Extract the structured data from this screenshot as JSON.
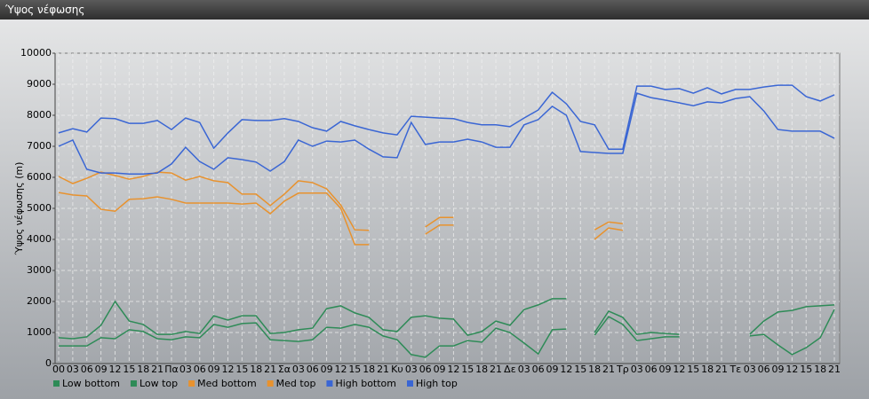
{
  "chart_data": {
    "type": "line",
    "title": "Ύψος νέφωσης",
    "ylabel": "Ύψος νέφωσης (m)",
    "categories": [
      "00",
      "03",
      "06",
      "09",
      "12",
      "15",
      "18",
      "21",
      "Πα",
      "03",
      "06",
      "09",
      "12",
      "15",
      "18",
      "21",
      "Σα",
      "03",
      "06",
      "09",
      "12",
      "15",
      "18",
      "21",
      "Κυ",
      "03",
      "06",
      "09",
      "12",
      "15",
      "18",
      "21",
      "Δε",
      "03",
      "06",
      "09",
      "12",
      "15",
      "18",
      "21",
      "Τρ",
      "03",
      "06",
      "09",
      "12",
      "15",
      "18",
      "21",
      "Τε",
      "03",
      "06",
      "09",
      "12",
      "15",
      "18",
      "21"
    ],
    "ylim": [
      0,
      10000
    ],
    "yticks": [
      0,
      1000,
      2000,
      3000,
      4000,
      5000,
      6000,
      7000,
      8000,
      9000,
      10000
    ],
    "grid": true,
    "legend": "bottom-left",
    "series": [
      {
        "name": "Low bottom",
        "color": "#2e8b57",
        "values": [
          570,
          570,
          570,
          830,
          800,
          1090,
          1030,
          800,
          770,
          860,
          830,
          1260,
          1170,
          1290,
          1310,
          770,
          740,
          710,
          770,
          1170,
          1140,
          1260,
          1170,
          890,
          770,
          290,
          200,
          570,
          570,
          740,
          690,
          1140,
          1000,
          660,
          310,
          1090,
          1110,
          null,
          910,
          1510,
          1260,
          740,
          800,
          860,
          860,
          null,
          null,
          null,
          null,
          890,
          940,
          600,
          290,
          510,
          830,
          1740
        ]
      },
      {
        "name": "Low top",
        "color": "#2e8b57",
        "values": [
          830,
          800,
          860,
          1230,
          2000,
          1370,
          1260,
          940,
          940,
          1030,
          970,
          1540,
          1400,
          1540,
          1540,
          970,
          1000,
          1090,
          1140,
          1770,
          1860,
          1630,
          1490,
          1090,
          1030,
          1490,
          1540,
          1460,
          1430,
          910,
          1030,
          1370,
          1230,
          1740,
          1890,
          2090,
          2090,
          null,
          1000,
          1690,
          1490,
          940,
          1000,
          970,
          940,
          null,
          null,
          null,
          null,
          940,
          1370,
          1660,
          1710,
          1830,
          1860,
          1890
        ]
      },
      {
        "name": "Med bottom",
        "color": "#e8922e",
        "values": [
          5510,
          5430,
          5400,
          4970,
          4910,
          5290,
          5310,
          5370,
          5290,
          5170,
          5170,
          5170,
          5170,
          5140,
          5170,
          4830,
          5230,
          5490,
          5490,
          5490,
          5000,
          3830,
          3830,
          null,
          null,
          null,
          4170,
          4460,
          4460,
          null,
          null,
          null,
          null,
          null,
          null,
          null,
          null,
          null,
          4000,
          4370,
          4290,
          null,
          null,
          null,
          null,
          null,
          null,
          null,
          null,
          null,
          null,
          null,
          null,
          null,
          null,
          null
        ]
      },
      {
        "name": "Med top",
        "color": "#e8922e",
        "values": [
          6030,
          5800,
          5970,
          6170,
          6060,
          5940,
          6030,
          6170,
          6140,
          5910,
          6030,
          5890,
          5830,
          5460,
          5460,
          5090,
          5460,
          5890,
          5830,
          5630,
          5110,
          4310,
          4290,
          null,
          null,
          null,
          4400,
          4710,
          4710,
          null,
          null,
          null,
          null,
          null,
          null,
          null,
          null,
          null,
          4310,
          4560,
          4510,
          null,
          null,
          null,
          null,
          null,
          null,
          null,
          null,
          null,
          null,
          null,
          null,
          null,
          null,
          null
        ]
      },
      {
        "name": "High bottom",
        "color": "#3a66d4",
        "values": [
          7000,
          7200,
          6260,
          6140,
          6140,
          6110,
          6110,
          6140,
          6430,
          6970,
          6510,
          6260,
          6630,
          6570,
          6490,
          6200,
          6510,
          7200,
          7000,
          7170,
          7140,
          7200,
          6910,
          6660,
          6630,
          7770,
          7060,
          7140,
          7140,
          7230,
          7140,
          6970,
          6970,
          7690,
          7860,
          8290,
          8000,
          6830,
          6800,
          6770,
          6770,
          8710,
          8570,
          8490,
          8400,
          8310,
          8430,
          8400,
          8540,
          8600,
          8140,
          7540,
          7490,
          7490,
          7490,
          7260
        ]
      },
      {
        "name": "High top",
        "color": "#3a66d4",
        "values": [
          7430,
          7570,
          7460,
          7910,
          7890,
          7740,
          7740,
          7830,
          7540,
          7910,
          7770,
          6940,
          7430,
          7860,
          7830,
          7830,
          7890,
          7800,
          7600,
          7490,
          7800,
          7660,
          7540,
          7430,
          7370,
          7970,
          7940,
          7910,
          7890,
          7770,
          7690,
          7690,
          7630,
          7910,
          8170,
          8740,
          8370,
          7800,
          7690,
          6910,
          6910,
          8940,
          8940,
          8830,
          8860,
          8710,
          8890,
          8690,
          8830,
          8830,
          8910,
          8970,
          8970,
          8600,
          8460,
          8660
        ]
      }
    ]
  }
}
